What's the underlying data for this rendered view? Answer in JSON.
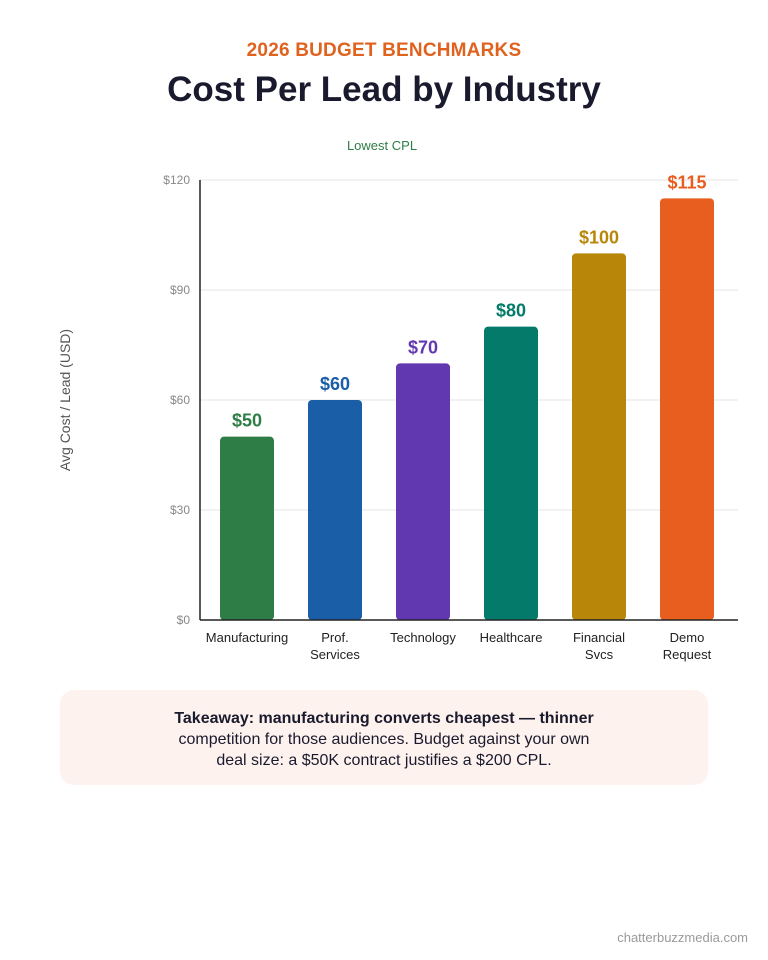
{
  "header": {
    "eyebrow": "2026 BUDGET BENCHMARKS",
    "title": "Cost Per Lead by Industry"
  },
  "chart_data": {
    "type": "bar",
    "annotation": "Lowest CPL",
    "ylabel": "Avg Cost / Lead (USD)",
    "xlabel": "",
    "ylim": [
      0,
      120
    ],
    "yticks": [
      0,
      30,
      60,
      90,
      120
    ],
    "ytick_labels": [
      "$0",
      "$30",
      "$60",
      "$90",
      "$120"
    ],
    "grid": true,
    "categories": [
      [
        "Manufacturing"
      ],
      [
        "Prof.",
        "Services"
      ],
      [
        "Technology"
      ],
      [
        "Healthcare"
      ],
      [
        "Financial",
        "Svcs"
      ],
      [
        "Demo",
        "Request"
      ]
    ],
    "values": [
      50,
      60,
      70,
      80,
      100,
      115
    ],
    "value_labels": [
      "$50",
      "$60",
      "$70",
      "$80",
      "$100",
      "$115"
    ],
    "colors": [
      "#2E7D47",
      "#1B5EA8",
      "#6238B0",
      "#047A6A",
      "#B8870A",
      "#E85E1E"
    ]
  },
  "takeaway": {
    "lead": "Takeaway: manufacturing converts cheapest — thinner",
    "body": "competition for those audiences. Budget against your own deal size: a $50K contract justifies a $200 CPL."
  },
  "footer": {
    "source": "chatterbuzzmedia.com"
  }
}
